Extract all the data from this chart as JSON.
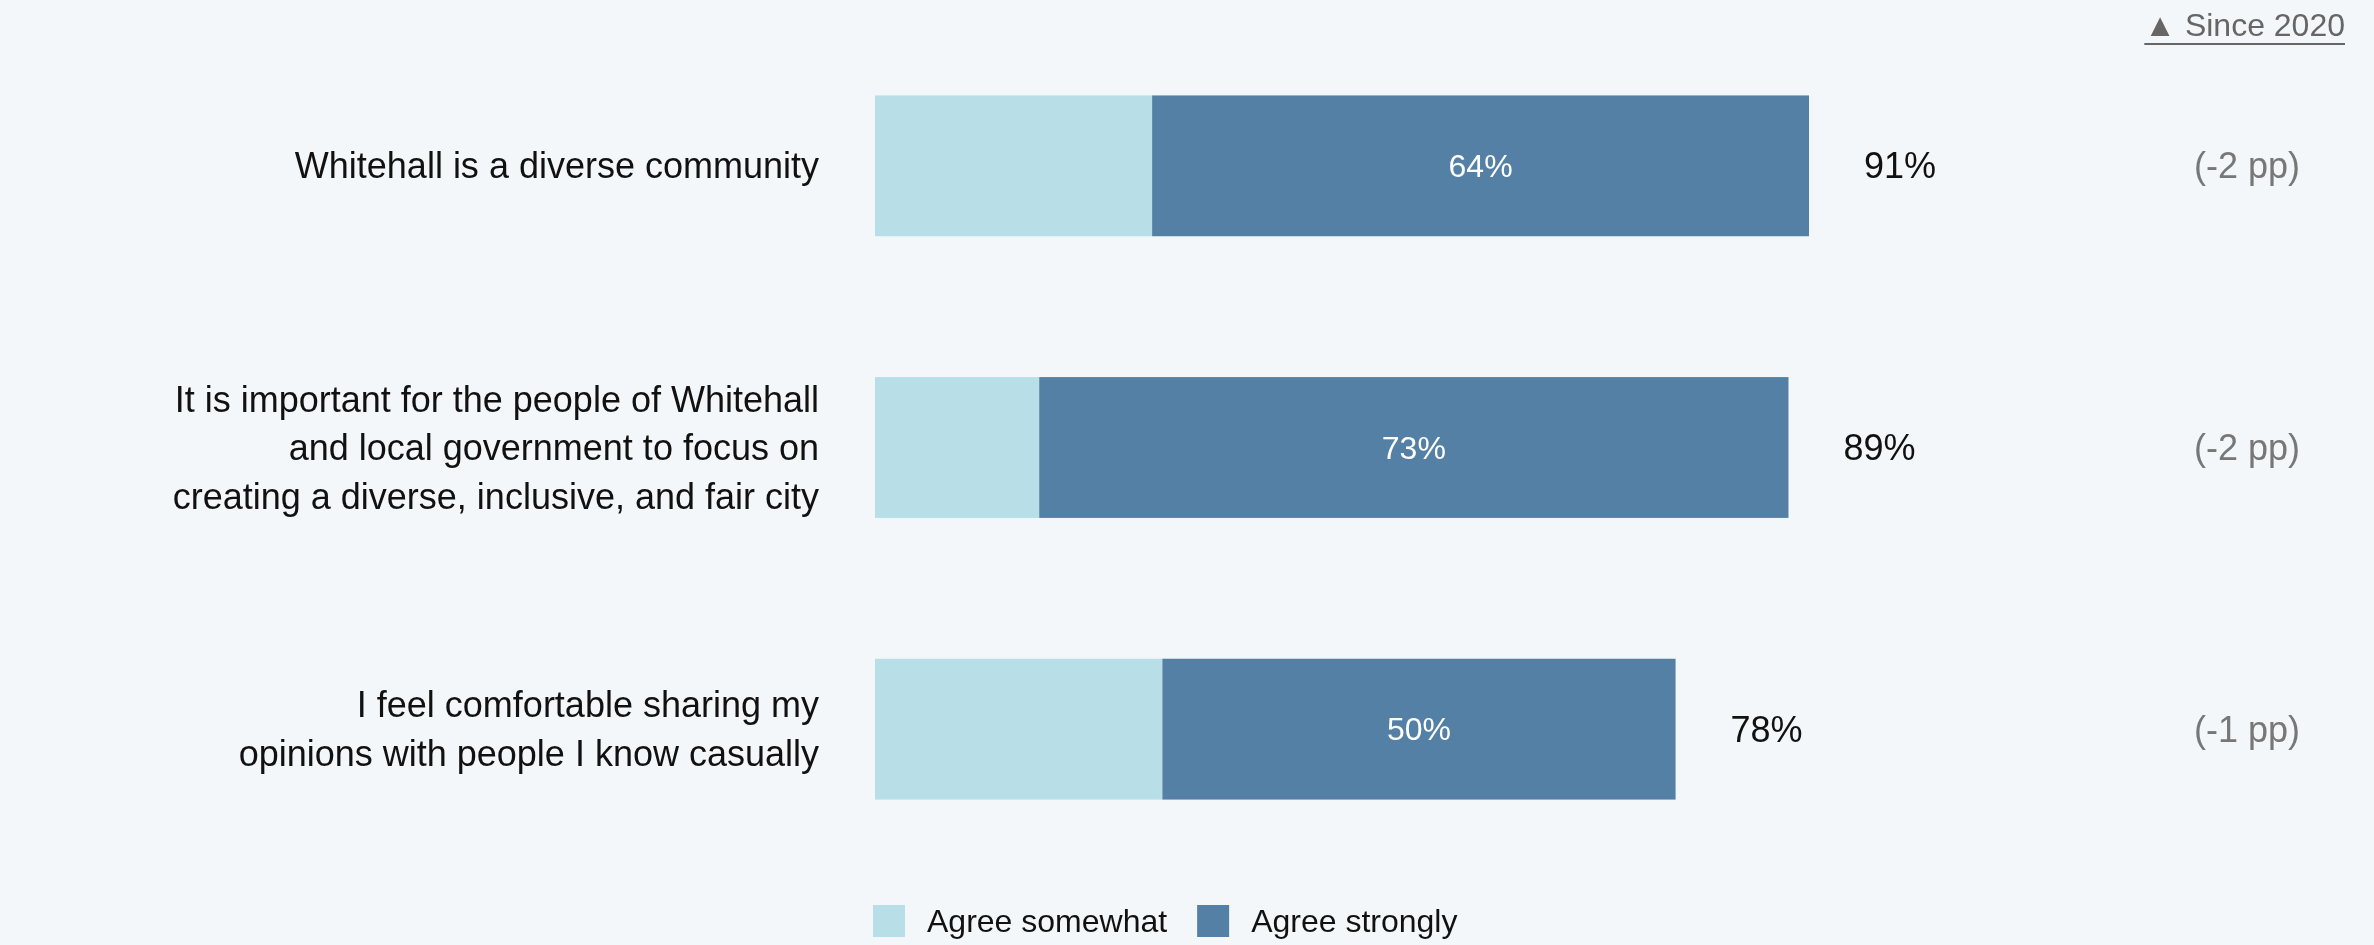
{
  "chart_data": {
    "type": "bar",
    "orientation": "horizontal",
    "stacked": true,
    "categories": [
      "Whitehall is a diverse community",
      "It is important for the people of Whitehall\nand local government to focus on\ncreating a diverse, inclusive, and fair city",
      "I feel comfortable sharing my\nopinions with people I know casually"
    ],
    "series": [
      {
        "name": "Agree somewhat",
        "color": "#b8dee7",
        "values": [
          27,
          16,
          28
        ]
      },
      {
        "name": "Agree strongly",
        "color": "#5480a5",
        "values": [
          64,
          73,
          50
        ],
        "value_labels": [
          "64%",
          "73%",
          "50%"
        ]
      }
    ],
    "totals": [
      "91%",
      "89%",
      "78%"
    ],
    "annotations": [
      "▲ Since 2020",
      "(-2 pp)",
      "(-2 pp)",
      "(-1 pp)"
    ],
    "legend": "bottom"
  }
}
